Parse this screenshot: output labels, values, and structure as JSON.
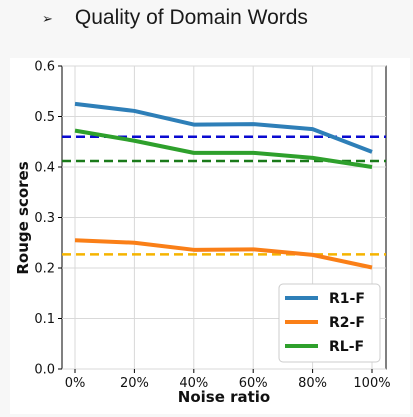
{
  "slide": {
    "bullet": "➢",
    "title": "Quality of Domain Words"
  },
  "chart_data": {
    "type": "line",
    "x": [
      "0%",
      "20%",
      "40%",
      "60%",
      "80%",
      "100%"
    ],
    "xlabel": "Noise ratio",
    "ylabel": "Rouge scores",
    "ylim": [
      0.0,
      0.6
    ],
    "yticks": [
      "0.0",
      "0.1",
      "0.2",
      "0.3",
      "0.4",
      "0.5",
      "0.6"
    ],
    "grid": true,
    "legend_position": "bottom-right",
    "series": [
      {
        "name": "R1-F",
        "color": "#2e7fb8",
        "values": [
          0.525,
          0.511,
          0.484,
          0.485,
          0.475,
          0.43
        ]
      },
      {
        "name": "R2-F",
        "color": "#fa7f17",
        "values": [
          0.255,
          0.25,
          0.236,
          0.237,
          0.226,
          0.201
        ]
      },
      {
        "name": "RL-F",
        "color": "#2ea02c",
        "values": [
          0.472,
          0.452,
          0.428,
          0.428,
          0.418,
          0.4
        ]
      }
    ],
    "reference_lines": [
      {
        "value": 0.46,
        "color": "#0a0ad0"
      },
      {
        "value": 0.412,
        "color": "#1a7a1a"
      },
      {
        "value": 0.227,
        "color": "#f5b400"
      }
    ]
  }
}
